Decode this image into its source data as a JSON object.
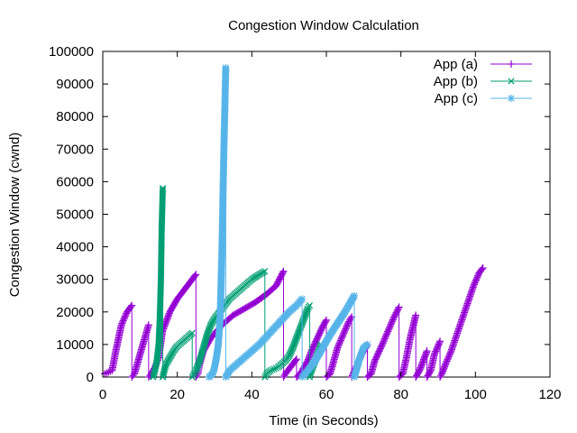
{
  "chart_data": {
    "type": "line",
    "title": "Congestion Window Calculation",
    "xlabel": "Time (in Seconds)",
    "ylabel": "Congestion Window (cwnd)",
    "xlim": [
      0,
      120
    ],
    "ylim": [
      0,
      100000
    ],
    "xticks": [
      0,
      20,
      40,
      60,
      80,
      100,
      120
    ],
    "yticks": [
      0,
      10000,
      20000,
      30000,
      40000,
      50000,
      60000,
      70000,
      80000,
      90000,
      100000
    ],
    "xtick_labels": [
      "0",
      "20",
      "40",
      "60",
      "80",
      "100",
      "120"
    ],
    "ytick_labels": [
      "0",
      "10000",
      "20000",
      "30000",
      "40000",
      "50000",
      "60000",
      "70000",
      "80000",
      "90000",
      "100000"
    ],
    "legend_position": "top-right",
    "grid": false,
    "series": [
      {
        "name": "App (a)",
        "color": "#9400d3",
        "marker": "plus",
        "points": [
          [
            0.5,
            1000
          ],
          [
            1.5,
            1500
          ],
          [
            2.5,
            2000
          ],
          [
            3.5,
            8000
          ],
          [
            5,
            16000
          ],
          [
            6.5,
            20000
          ],
          [
            7.8,
            22000
          ],
          [
            7.8,
            0
          ],
          [
            8.5,
            1000
          ],
          [
            9.5,
            5000
          ],
          [
            11,
            11000
          ],
          [
            12.3,
            16000
          ],
          [
            12.3,
            0
          ],
          [
            13,
            1000
          ],
          [
            14,
            3000
          ],
          [
            15,
            6000
          ],
          [
            16,
            14000
          ],
          [
            18,
            20000
          ],
          [
            20,
            24000
          ],
          [
            22,
            27000
          ],
          [
            24,
            30000
          ],
          [
            25,
            31500
          ],
          [
            25,
            0
          ],
          [
            25.5,
            1000
          ],
          [
            26,
            4000
          ],
          [
            27,
            8000
          ],
          [
            29,
            12000
          ],
          [
            32,
            16000
          ],
          [
            35,
            19000
          ],
          [
            38,
            21000
          ],
          [
            41,
            23000
          ],
          [
            44,
            25500
          ],
          [
            46.5,
            28000
          ],
          [
            48.5,
            32500
          ],
          [
            48.5,
            0
          ],
          [
            49,
            1000
          ],
          [
            50,
            2500
          ],
          [
            51,
            4000
          ],
          [
            52,
            5500
          ],
          [
            52,
            0
          ],
          [
            53,
            1000
          ],
          [
            54,
            3000
          ],
          [
            55,
            5000
          ],
          [
            56,
            8000
          ],
          [
            57,
            10500
          ],
          [
            58,
            13000
          ],
          [
            59,
            15500
          ],
          [
            60,
            17500
          ],
          [
            60,
            0
          ],
          [
            61,
            1000
          ],
          [
            62,
            5000
          ],
          [
            63,
            9000
          ],
          [
            64.5,
            13000
          ],
          [
            66,
            17000
          ],
          [
            66.8,
            18500
          ],
          [
            66.8,
            0
          ],
          [
            68,
            3000
          ],
          [
            69.5,
            7000
          ],
          [
            71,
            10000
          ],
          [
            71,
            0
          ],
          [
            72,
            1000
          ],
          [
            73,
            5000
          ],
          [
            75,
            10000
          ],
          [
            76.5,
            14000
          ],
          [
            78,
            18000
          ],
          [
            79.5,
            21500
          ],
          [
            79.5,
            0
          ],
          [
            80.5,
            1000
          ],
          [
            81.5,
            6000
          ],
          [
            82.5,
            12000
          ],
          [
            84,
            19000
          ],
          [
            84,
            0
          ],
          [
            85,
            2000
          ],
          [
            86,
            5000
          ],
          [
            87,
            8000
          ],
          [
            87,
            0
          ],
          [
            88,
            2000
          ],
          [
            89,
            7000
          ],
          [
            90.5,
            11000
          ],
          [
            90.5,
            0
          ],
          [
            91,
            1000
          ],
          [
            92,
            4000
          ],
          [
            93.5,
            8000
          ],
          [
            95,
            13000
          ],
          [
            96.5,
            18000
          ],
          [
            98,
            23000
          ],
          [
            99.5,
            28000
          ],
          [
            101,
            32000
          ],
          [
            102,
            33500
          ]
        ]
      },
      {
        "name": "App (b)",
        "color": "#009e73",
        "marker": "cross",
        "points": [
          [
            13.5,
            0
          ],
          [
            14,
            2000
          ],
          [
            14.5,
            5000
          ],
          [
            15,
            10000
          ],
          [
            15.3,
            18000
          ],
          [
            15.6,
            30000
          ],
          [
            15.8,
            45000
          ],
          [
            16.1,
            58000
          ],
          [
            16.1,
            0
          ],
          [
            16.5,
            2000
          ],
          [
            17,
            4000
          ],
          [
            18,
            6000
          ],
          [
            19,
            8000
          ],
          [
            20,
            9500
          ],
          [
            21,
            10500
          ],
          [
            22,
            11500
          ],
          [
            23,
            12500
          ],
          [
            24,
            13500
          ],
          [
            24,
            0
          ],
          [
            24.5,
            1000
          ],
          [
            25,
            2000
          ],
          [
            26,
            5000
          ],
          [
            27,
            9000
          ],
          [
            28,
            13000
          ],
          [
            29,
            16000
          ],
          [
            30,
            18000
          ],
          [
            32,
            21000
          ],
          [
            34,
            24000
          ],
          [
            36,
            26000
          ],
          [
            38,
            28000
          ],
          [
            40,
            30000
          ],
          [
            42,
            31500
          ],
          [
            43.5,
            32500
          ],
          [
            43.5,
            0
          ],
          [
            44,
            1000
          ],
          [
            45,
            2000
          ],
          [
            46,
            2500
          ],
          [
            47,
            3000
          ],
          [
            48,
            4000
          ],
          [
            49,
            5000
          ],
          [
            50,
            6500
          ],
          [
            51,
            9000
          ],
          [
            52,
            12000
          ],
          [
            53,
            15000
          ],
          [
            54,
            18000
          ],
          [
            55,
            21000
          ],
          [
            55.5,
            22000
          ],
          [
            55.5,
            0
          ],
          [
            56,
            2000
          ],
          [
            57,
            5000
          ],
          [
            58,
            8000
          ],
          [
            58.5,
            10000
          ]
        ]
      },
      {
        "name": "App (c)",
        "color": "#56b4e9",
        "marker": "star",
        "points": [
          [
            28.5,
            0
          ],
          [
            29.5,
            1000
          ],
          [
            30,
            3000
          ],
          [
            30.5,
            6000
          ],
          [
            31,
            10000
          ],
          [
            31.5,
            18000
          ],
          [
            32,
            40000
          ],
          [
            32.5,
            70000
          ],
          [
            33,
            95000
          ],
          [
            33,
            0
          ],
          [
            34,
            2000
          ],
          [
            36,
            4000
          ],
          [
            38,
            6000
          ],
          [
            40,
            8000
          ],
          [
            42,
            10000
          ],
          [
            44,
            12500
          ],
          [
            46,
            15000
          ],
          [
            48,
            17500
          ],
          [
            50,
            20000
          ],
          [
            52,
            22000
          ],
          [
            53.5,
            24000
          ],
          [
            53.5,
            0
          ],
          [
            55,
            2000
          ],
          [
            57,
            5000
          ],
          [
            59,
            9000
          ],
          [
            61,
            13000
          ],
          [
            63,
            16500
          ],
          [
            65,
            20000
          ],
          [
            66.5,
            23000
          ],
          [
            67.5,
            25000
          ],
          [
            67.5,
            0
          ],
          [
            68,
            2000
          ],
          [
            69,
            6000
          ],
          [
            70,
            9000
          ],
          [
            71,
            10000
          ]
        ]
      }
    ]
  }
}
